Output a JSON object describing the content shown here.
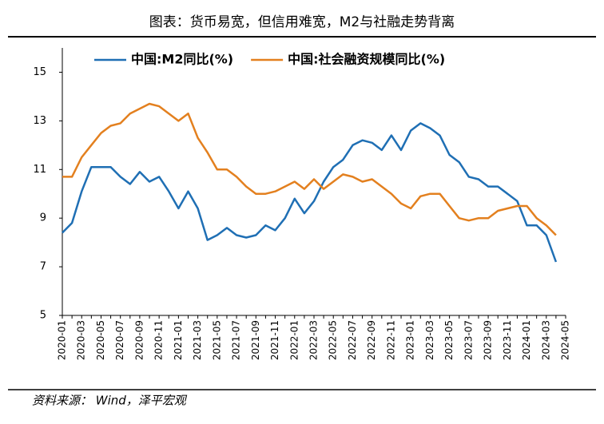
{
  "chart_data": {
    "type": "line",
    "title": "图表：货币易宽，但信用难宽，M2与社融走势背离",
    "source": "资料来源： Wind，泽平宏观",
    "categories": [
      "2020-01",
      null,
      "2020-03",
      null,
      "2020-05",
      null,
      "2020-07",
      null,
      "2020-09",
      null,
      "2020-11",
      null,
      "2021-01",
      null,
      "2021-03",
      null,
      "2021-05",
      null,
      "2021-07",
      null,
      "2021-09",
      null,
      "2021-11",
      null,
      "2022-01",
      null,
      "2022-03",
      null,
      "2022-05",
      null,
      "2022-07",
      null,
      "2022-09",
      null,
      "2022-11",
      null,
      "2023-01",
      null,
      "2023-03",
      null,
      "2023-05",
      null,
      "2023-07",
      null,
      "2023-09",
      null,
      "2023-11",
      null,
      "2024-01",
      null,
      "2024-03",
      null,
      "2024-05"
    ],
    "series": [
      {
        "name": "中国:M2同比(%)",
        "color": "#1f6fb4",
        "values": [
          8.4,
          8.8,
          10.1,
          11.1,
          11.1,
          11.1,
          10.7,
          10.4,
          10.9,
          10.5,
          10.7,
          10.1,
          9.4,
          10.1,
          9.4,
          8.1,
          8.3,
          8.6,
          8.3,
          8.2,
          8.3,
          8.7,
          8.5,
          9.0,
          9.8,
          9.2,
          9.7,
          10.5,
          11.1,
          11.4,
          12.0,
          12.2,
          12.1,
          11.8,
          12.4,
          11.8,
          12.6,
          12.9,
          12.7,
          12.4,
          11.6,
          11.3,
          10.7,
          10.6,
          10.3,
          10.3,
          10.0,
          9.7,
          8.7,
          8.7,
          8.3,
          7.2,
          null
        ]
      },
      {
        "name": "中国:社会融资规模同比(%)",
        "color": "#e3801f",
        "values": [
          10.7,
          10.7,
          11.5,
          12.0,
          12.5,
          12.8,
          12.9,
          13.3,
          13.5,
          13.7,
          13.6,
          13.3,
          13.0,
          13.3,
          12.3,
          11.7,
          11.0,
          11.0,
          10.7,
          10.3,
          10.0,
          10.0,
          10.1,
          10.3,
          10.5,
          10.2,
          10.6,
          10.2,
          10.5,
          10.8,
          10.7,
          10.5,
          10.6,
          10.3,
          10.0,
          9.6,
          9.4,
          9.9,
          10.0,
          10.0,
          9.5,
          9.0,
          8.9,
          9.0,
          9.0,
          9.3,
          9.4,
          9.5,
          9.5,
          9.0,
          8.7,
          8.3,
          null
        ]
      }
    ],
    "ylim": [
      5,
      16
    ],
    "yticks": [
      5,
      7,
      9,
      11,
      13,
      15
    ],
    "grid": false,
    "legend": "top"
  }
}
